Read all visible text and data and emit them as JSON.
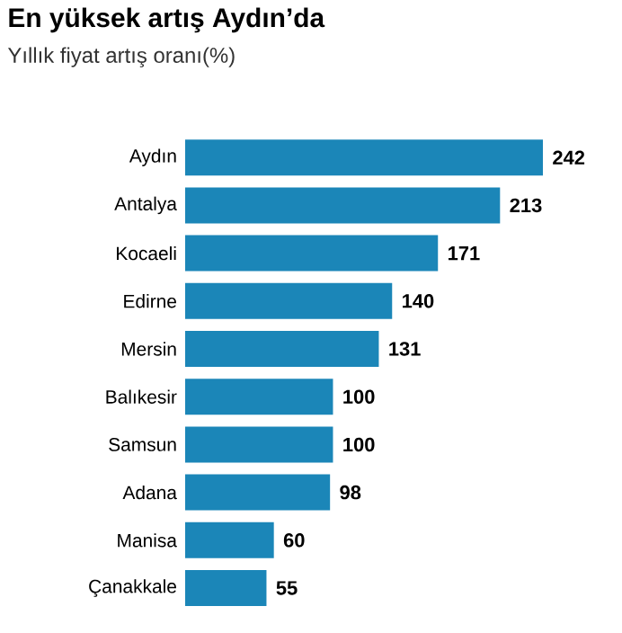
{
  "chart_data": {
    "type": "bar",
    "orientation": "horizontal",
    "title": "En yüksek artış Aydın’da",
    "subtitle": "Yıllık fiyat artış oranı(%)",
    "categories": [
      "Aydın",
      "Antalya",
      "Kocaeli",
      "Edirne",
      "Mersin",
      "Balıkesir",
      "Samsun",
      "Adana",
      "Manisa",
      "Çanakkale"
    ],
    "values": [
      242,
      213,
      171,
      140,
      131,
      100,
      100,
      98,
      60,
      55
    ],
    "color": "#1b86b8",
    "data_labels": true
  }
}
